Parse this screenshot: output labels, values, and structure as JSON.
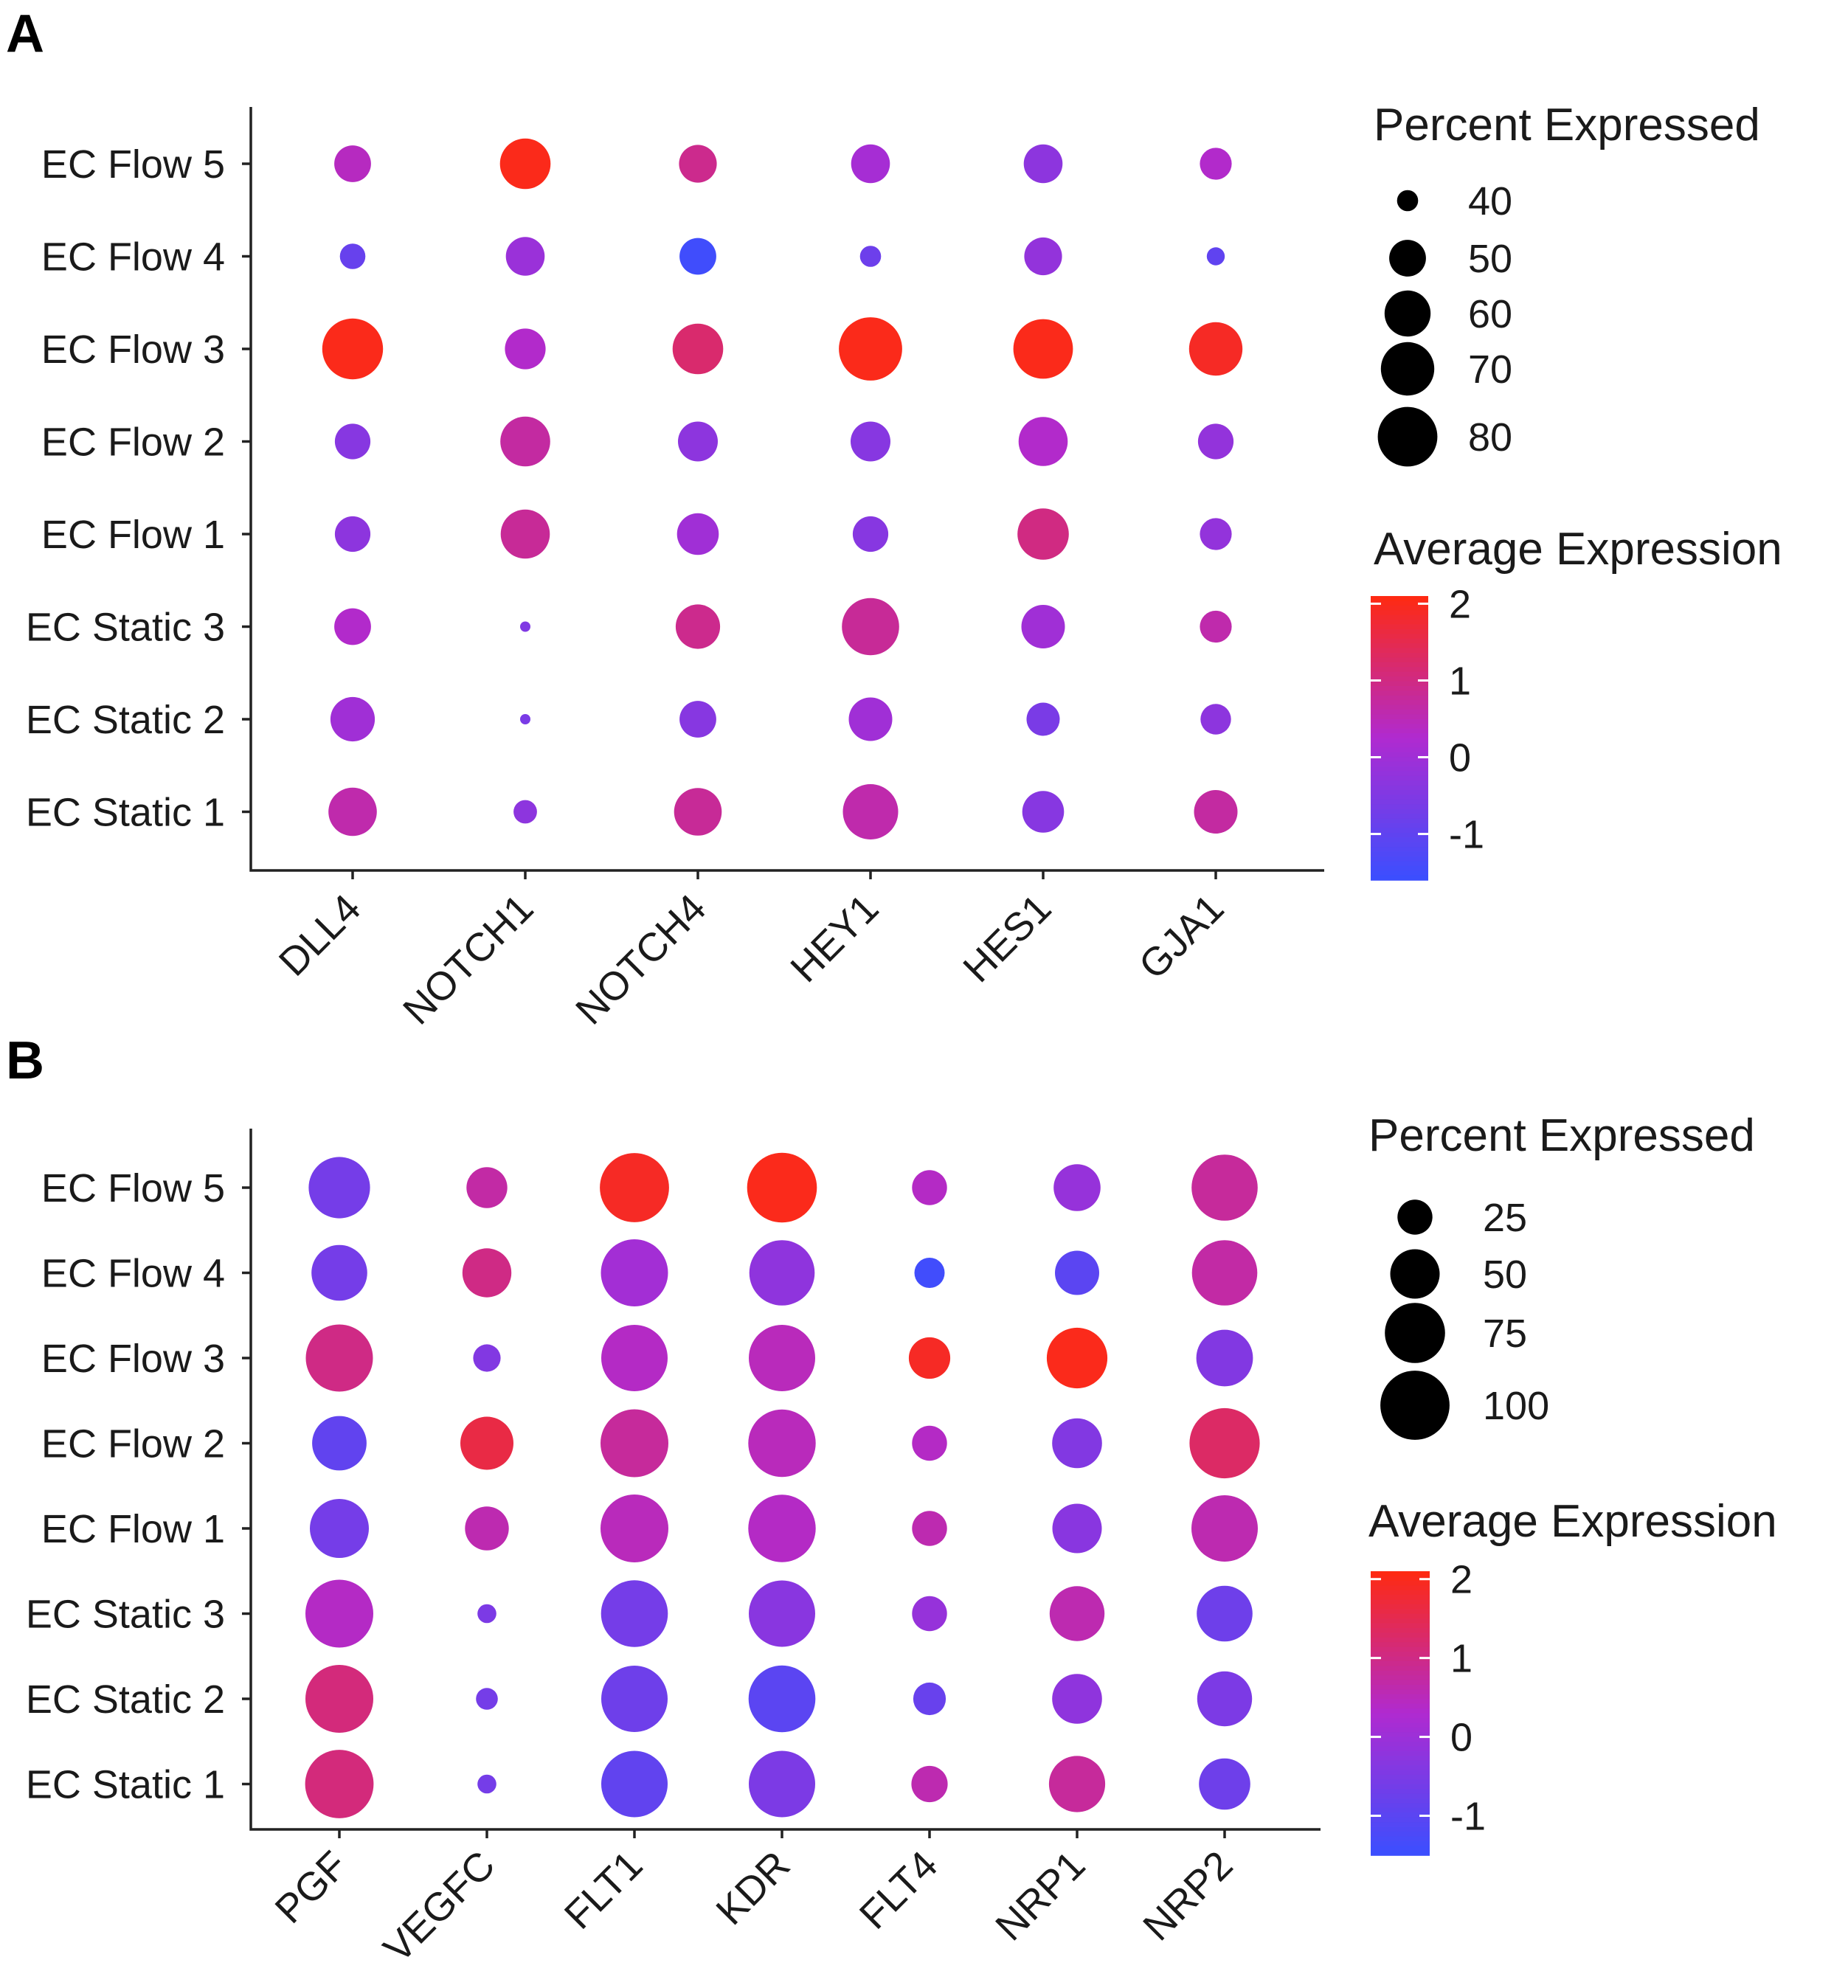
{
  "chart_data": [
    {
      "type": "dotplot",
      "panel": "A",
      "xlabel": "",
      "ylabel": "",
      "categories_x": [
        "DLL4",
        "NOTCH1",
        "NOTCH4",
        "HEY1",
        "HES1",
        "GJA1"
      ],
      "categories_y": [
        "EC Flow 5",
        "EC Flow 4",
        "EC Flow 3",
        "EC Flow 2",
        "EC Flow 1",
        "EC Static 3",
        "EC Static 2",
        "EC Static 1"
      ],
      "size_legend_title": "Percent Expressed",
      "size_legend_values": [
        40,
        50,
        60,
        70,
        80
      ],
      "size_range": [
        38,
        84
      ],
      "color_legend_title": "Average Expression",
      "color_legend_ticks": [
        2,
        1,
        0,
        -1
      ],
      "color_range": [
        -1.6,
        2.1
      ],
      "colors": {
        "low": "#3a4fff",
        "mid": "#b02ad0",
        "high": "#ff2a10"
      },
      "points": [
        {
          "x": "DLL4",
          "y": "EC Flow 5",
          "pct": 50,
          "avg": 0.4
        },
        {
          "x": "NOTCH1",
          "y": "EC Flow 5",
          "pct": 66,
          "avg": 2.0
        },
        {
          "x": "NOTCH4",
          "y": "EC Flow 5",
          "pct": 51,
          "avg": 0.9
        },
        {
          "x": "HEY1",
          "y": "EC Flow 5",
          "pct": 52,
          "avg": 0.1
        },
        {
          "x": "HES1",
          "y": "EC Flow 5",
          "pct": 52,
          "avg": -0.3
        },
        {
          "x": "GJA1",
          "y": "EC Flow 5",
          "pct": 46,
          "avg": 0.3
        },
        {
          "x": "DLL4",
          "y": "EC Flow 4",
          "pct": 42,
          "avg": -0.9
        },
        {
          "x": "NOTCH1",
          "y": "EC Flow 4",
          "pct": 52,
          "avg": -0.1
        },
        {
          "x": "NOTCH4",
          "y": "EC Flow 4",
          "pct": 50,
          "avg": -1.5
        },
        {
          "x": "HEY1",
          "y": "EC Flow 4",
          "pct": 40,
          "avg": -0.8
        },
        {
          "x": "HES1",
          "y": "EC Flow 4",
          "pct": 51,
          "avg": -0.2
        },
        {
          "x": "GJA1",
          "y": "EC Flow 4",
          "pct": 39,
          "avg": -1.0
        },
        {
          "x": "DLL4",
          "y": "EC Flow 3",
          "pct": 82,
          "avg": 2.0
        },
        {
          "x": "NOTCH1",
          "y": "EC Flow 3",
          "pct": 54,
          "avg": 0.3
        },
        {
          "x": "NOTCH4",
          "y": "EC Flow 3",
          "pct": 66,
          "avg": 1.2
        },
        {
          "x": "HEY1",
          "y": "EC Flow 3",
          "pct": 94,
          "avg": 2.0
        },
        {
          "x": "HES1",
          "y": "EC Flow 3",
          "pct": 80,
          "avg": 2.0
        },
        {
          "x": "GJA1",
          "y": "EC Flow 3",
          "pct": 70,
          "avg": 1.9
        },
        {
          "x": "DLL4",
          "y": "EC Flow 2",
          "pct": 49,
          "avg": -0.4
        },
        {
          "x": "NOTCH1",
          "y": "EC Flow 2",
          "pct": 65,
          "avg": 0.7
        },
        {
          "x": "NOTCH4",
          "y": "EC Flow 2",
          "pct": 53,
          "avg": -0.3
        },
        {
          "x": "HEY1",
          "y": "EC Flow 2",
          "pct": 53,
          "avg": -0.4
        },
        {
          "x": "HES1",
          "y": "EC Flow 2",
          "pct": 64,
          "avg": 0.3
        },
        {
          "x": "GJA1",
          "y": "EC Flow 2",
          "pct": 49,
          "avg": -0.2
        },
        {
          "x": "DLL4",
          "y": "EC Flow 1",
          "pct": 49,
          "avg": -0.3
        },
        {
          "x": "NOTCH1",
          "y": "EC Flow 1",
          "pct": 64,
          "avg": 0.8
        },
        {
          "x": "NOTCH4",
          "y": "EC Flow 1",
          "pct": 55,
          "avg": 0.0
        },
        {
          "x": "HEY1",
          "y": "EC Flow 1",
          "pct": 49,
          "avg": -0.4
        },
        {
          "x": "HES1",
          "y": "EC Flow 1",
          "pct": 67,
          "avg": 1.0
        },
        {
          "x": "GJA1",
          "y": "EC Flow 1",
          "pct": 46,
          "avg": -0.2
        },
        {
          "x": "DLL4",
          "y": "EC Static 3",
          "pct": 50,
          "avg": 0.3
        },
        {
          "x": "NOTCH1",
          "y": "EC Static 3",
          "pct": 35,
          "avg": -0.5
        },
        {
          "x": "NOTCH4",
          "y": "EC Static 3",
          "pct": 58,
          "avg": 0.9
        },
        {
          "x": "HEY1",
          "y": "EC Static 3",
          "pct": 76,
          "avg": 0.8
        },
        {
          "x": "HES1",
          "y": "EC Static 3",
          "pct": 57,
          "avg": 0.0
        },
        {
          "x": "GJA1",
          "y": "EC Static 3",
          "pct": 46,
          "avg": 0.6
        },
        {
          "x": "DLL4",
          "y": "EC Static 2",
          "pct": 58,
          "avg": 0.0
        },
        {
          "x": "NOTCH1",
          "y": "EC Static 2",
          "pct": 34,
          "avg": -0.6
        },
        {
          "x": "NOTCH4",
          "y": "EC Static 2",
          "pct": 50,
          "avg": -0.4
        },
        {
          "x": "HEY1",
          "y": "EC Static 2",
          "pct": 57,
          "avg": 0.0
        },
        {
          "x": "HES1",
          "y": "EC Static 2",
          "pct": 47,
          "avg": -0.6
        },
        {
          "x": "GJA1",
          "y": "EC Static 2",
          "pct": 45,
          "avg": -0.3
        },
        {
          "x": "DLL4",
          "y": "EC Static 1",
          "pct": 63,
          "avg": 0.6
        },
        {
          "x": "NOTCH1",
          "y": "EC Static 1",
          "pct": 41,
          "avg": -0.3
        },
        {
          "x": "NOTCH4",
          "y": "EC Static 1",
          "pct": 62,
          "avg": 0.8
        },
        {
          "x": "HEY1",
          "y": "EC Static 1",
          "pct": 73,
          "avg": 0.6
        },
        {
          "x": "HES1",
          "y": "EC Static 1",
          "pct": 55,
          "avg": -0.4
        },
        {
          "x": "GJA1",
          "y": "EC Static 1",
          "pct": 57,
          "avg": 0.7
        }
      ]
    },
    {
      "type": "dotplot",
      "panel": "B",
      "xlabel": "",
      "ylabel": "",
      "categories_x": [
        "PGF",
        "VEGFC",
        "FLT1",
        "KDR",
        "FLT4",
        "NRP1",
        "NRP2"
      ],
      "categories_y": [
        "EC Flow 5",
        "EC Flow 4",
        "EC Flow 3",
        "EC Flow 2",
        "EC Flow 1",
        "EC Static 3",
        "EC Static 2",
        "EC Static 1"
      ],
      "size_legend_title": "Percent Expressed",
      "size_legend_values": [
        25,
        50,
        75,
        100
      ],
      "size_range": [
        5,
        105
      ],
      "color_legend_title": "Average Expression",
      "color_legend_ticks": [
        2,
        1,
        0,
        -1
      ],
      "color_range": [
        -1.5,
        2.1
      ],
      "colors": {
        "low": "#3a4fff",
        "mid": "#b02ad0",
        "high": "#ff2a10"
      },
      "points": [
        {
          "x": "PGF",
          "y": "EC Flow 5",
          "pct": 78,
          "avg": -0.6
        },
        {
          "x": "VEGFC",
          "y": "EC Flow 5",
          "pct": 34,
          "avg": 0.7
        },
        {
          "x": "FLT1",
          "y": "EC Flow 5",
          "pct": 100,
          "avg": 1.9
        },
        {
          "x": "KDR",
          "y": "EC Flow 5",
          "pct": 102,
          "avg": 2.0
        },
        {
          "x": "FLT4",
          "y": "EC Flow 5",
          "pct": 25,
          "avg": 0.4
        },
        {
          "x": "NRP1",
          "y": "EC Flow 5",
          "pct": 45,
          "avg": -0.1
        },
        {
          "x": "NRP2",
          "y": "EC Flow 5",
          "pct": 91,
          "avg": 0.8
        },
        {
          "x": "PGF",
          "y": "EC Flow 4",
          "pct": 64,
          "avg": -0.6
        },
        {
          "x": "VEGFC",
          "y": "EC Flow 4",
          "pct": 49,
          "avg": 1.0
        },
        {
          "x": "FLT1",
          "y": "EC Flow 4",
          "pct": 94,
          "avg": 0.1
        },
        {
          "x": "KDR",
          "y": "EC Flow 4",
          "pct": 89,
          "avg": -0.2
        },
        {
          "x": "FLT4",
          "y": "EC Flow 4",
          "pct": 19,
          "avg": -1.4
        },
        {
          "x": "NRP1",
          "y": "EC Flow 4",
          "pct": 40,
          "avg": -1.0
        },
        {
          "x": "NRP2",
          "y": "EC Flow 4",
          "pct": 89,
          "avg": 0.7
        },
        {
          "x": "PGF",
          "y": "EC Flow 3",
          "pct": 94,
          "avg": 1.0
        },
        {
          "x": "VEGFC",
          "y": "EC Flow 3",
          "pct": 16,
          "avg": -0.4
        },
        {
          "x": "FLT1",
          "y": "EC Flow 3",
          "pct": 92,
          "avg": 0.4
        },
        {
          "x": "KDR",
          "y": "EC Flow 3",
          "pct": 92,
          "avg": 0.5
        },
        {
          "x": "FLT4",
          "y": "EC Flow 3",
          "pct": 35,
          "avg": 1.9
        },
        {
          "x": "NRP1",
          "y": "EC Flow 3",
          "pct": 76,
          "avg": 2.0
        },
        {
          "x": "NRP2",
          "y": "EC Flow 3",
          "pct": 66,
          "avg": -0.4
        },
        {
          "x": "PGF",
          "y": "EC Flow 2",
          "pct": 61,
          "avg": -0.9
        },
        {
          "x": "VEGFC",
          "y": "EC Flow 2",
          "pct": 58,
          "avg": 1.6
        },
        {
          "x": "FLT1",
          "y": "EC Flow 2",
          "pct": 96,
          "avg": 0.8
        },
        {
          "x": "KDR",
          "y": "EC Flow 2",
          "pct": 95,
          "avg": 0.5
        },
        {
          "x": "FLT4",
          "y": "EC Flow 2",
          "pct": 25,
          "avg": 0.4
        },
        {
          "x": "NRP1",
          "y": "EC Flow 2",
          "pct": 51,
          "avg": -0.4
        },
        {
          "x": "NRP2",
          "y": "EC Flow 2",
          "pct": 103,
          "avg": 1.3
        },
        {
          "x": "PGF",
          "y": "EC Flow 1",
          "pct": 72,
          "avg": -0.6
        },
        {
          "x": "VEGFC",
          "y": "EC Flow 1",
          "pct": 39,
          "avg": 0.6
        },
        {
          "x": "FLT1",
          "y": "EC Flow 1",
          "pct": 96,
          "avg": 0.5
        },
        {
          "x": "KDR",
          "y": "EC Flow 1",
          "pct": 95,
          "avg": 0.4
        },
        {
          "x": "FLT4",
          "y": "EC Flow 1",
          "pct": 25,
          "avg": 0.6
        },
        {
          "x": "NRP1",
          "y": "EC Flow 1",
          "pct": 50,
          "avg": -0.3
        },
        {
          "x": "NRP2",
          "y": "EC Flow 1",
          "pct": 92,
          "avg": 0.6
        },
        {
          "x": "PGF",
          "y": "EC Static 3",
          "pct": 96,
          "avg": 0.4
        },
        {
          "x": "VEGFC",
          "y": "EC Static 3",
          "pct": 9,
          "avg": -0.5
        },
        {
          "x": "FLT1",
          "y": "EC Static 3",
          "pct": 93,
          "avg": -0.6
        },
        {
          "x": "KDR",
          "y": "EC Static 3",
          "pct": 92,
          "avg": -0.3
        },
        {
          "x": "FLT4",
          "y": "EC Static 3",
          "pct": 25,
          "avg": -0.1
        },
        {
          "x": "NRP1",
          "y": "EC Static 3",
          "pct": 62,
          "avg": 0.6
        },
        {
          "x": "NRP2",
          "y": "EC Static 3",
          "pct": 64,
          "avg": -0.7
        },
        {
          "x": "PGF",
          "y": "EC Static 2",
          "pct": 96,
          "avg": 1.1
        },
        {
          "x": "VEGFC",
          "y": "EC Static 2",
          "pct": 11,
          "avg": -0.6
        },
        {
          "x": "FLT1",
          "y": "EC Static 2",
          "pct": 92,
          "avg": -0.7
        },
        {
          "x": "KDR",
          "y": "EC Static 2",
          "pct": 93,
          "avg": -1.0
        },
        {
          "x": "FLT4",
          "y": "EC Static 2",
          "pct": 22,
          "avg": -0.8
        },
        {
          "x": "NRP1",
          "y": "EC Static 2",
          "pct": 51,
          "avg": -0.2
        },
        {
          "x": "NRP2",
          "y": "EC Static 2",
          "pct": 62,
          "avg": -0.5
        },
        {
          "x": "PGF",
          "y": "EC Static 1",
          "pct": 98,
          "avg": 1.1
        },
        {
          "x": "VEGFC",
          "y": "EC Static 1",
          "pct": 9,
          "avg": -0.6
        },
        {
          "x": "FLT1",
          "y": "EC Static 1",
          "pct": 92,
          "avg": -0.9
        },
        {
          "x": "KDR",
          "y": "EC Static 1",
          "pct": 92,
          "avg": -0.5
        },
        {
          "x": "FLT4",
          "y": "EC Static 1",
          "pct": 27,
          "avg": 0.6
        },
        {
          "x": "NRP1",
          "y": "EC Static 1",
          "pct": 65,
          "avg": 0.8
        },
        {
          "x": "NRP2",
          "y": "EC Static 1",
          "pct": 54,
          "avg": -0.7
        }
      ]
    }
  ]
}
